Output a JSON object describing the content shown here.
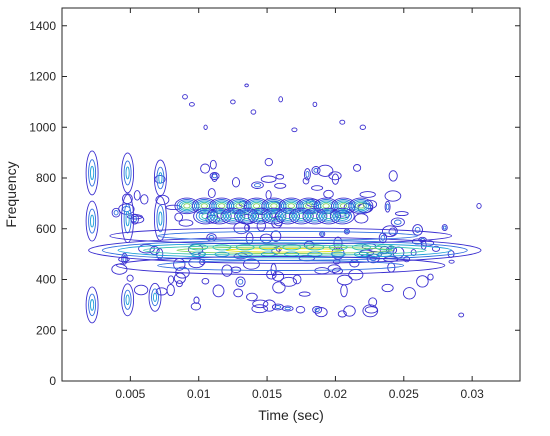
{
  "chart_data": {
    "type": "contour",
    "title": "",
    "xlabel": "Time (sec)",
    "ylabel": "Frequency",
    "xlim": [
      0,
      0.0335
    ],
    "ylim": [
      0,
      1470
    ],
    "xticks": [
      {
        "value": 0.005,
        "label": "0.005"
      },
      {
        "value": 0.01,
        "label": "0.01"
      },
      {
        "value": 0.015,
        "label": "0.015"
      },
      {
        "value": 0.02,
        "label": "0.02"
      },
      {
        "value": 0.025,
        "label": "0.025"
      },
      {
        "value": 0.03,
        "label": "0.03"
      }
    ],
    "yticks": [
      {
        "value": 0,
        "label": "0"
      },
      {
        "value": 200,
        "label": "200"
      },
      {
        "value": 400,
        "label": "400"
      },
      {
        "value": 600,
        "label": "600"
      },
      {
        "value": 800,
        "label": "800"
      },
      {
        "value": 1000,
        "label": "1000"
      },
      {
        "value": 1200,
        "label": "1200"
      },
      {
        "value": 1400,
        "label": "1400"
      }
    ],
    "grid": false,
    "legend": "none",
    "colormap": [
      "#3b2fd0",
      "#2f6ee0",
      "#1fa0d8",
      "#30c0b0",
      "#7fd060",
      "#e8e020"
    ],
    "bands": [
      {
        "freq": 515,
        "t_start": 0.0018,
        "t_end": 0.0305,
        "peak": 1.0,
        "role": "fundamental"
      },
      {
        "freq": 690,
        "t_start": 0.0085,
        "t_end": 0.0225,
        "peak": 0.8,
        "role": "harmonic"
      },
      {
        "freq": 650,
        "t_start": 0.01,
        "t_end": 0.021,
        "peak": 0.6,
        "role": "harmonic"
      }
    ]
  }
}
